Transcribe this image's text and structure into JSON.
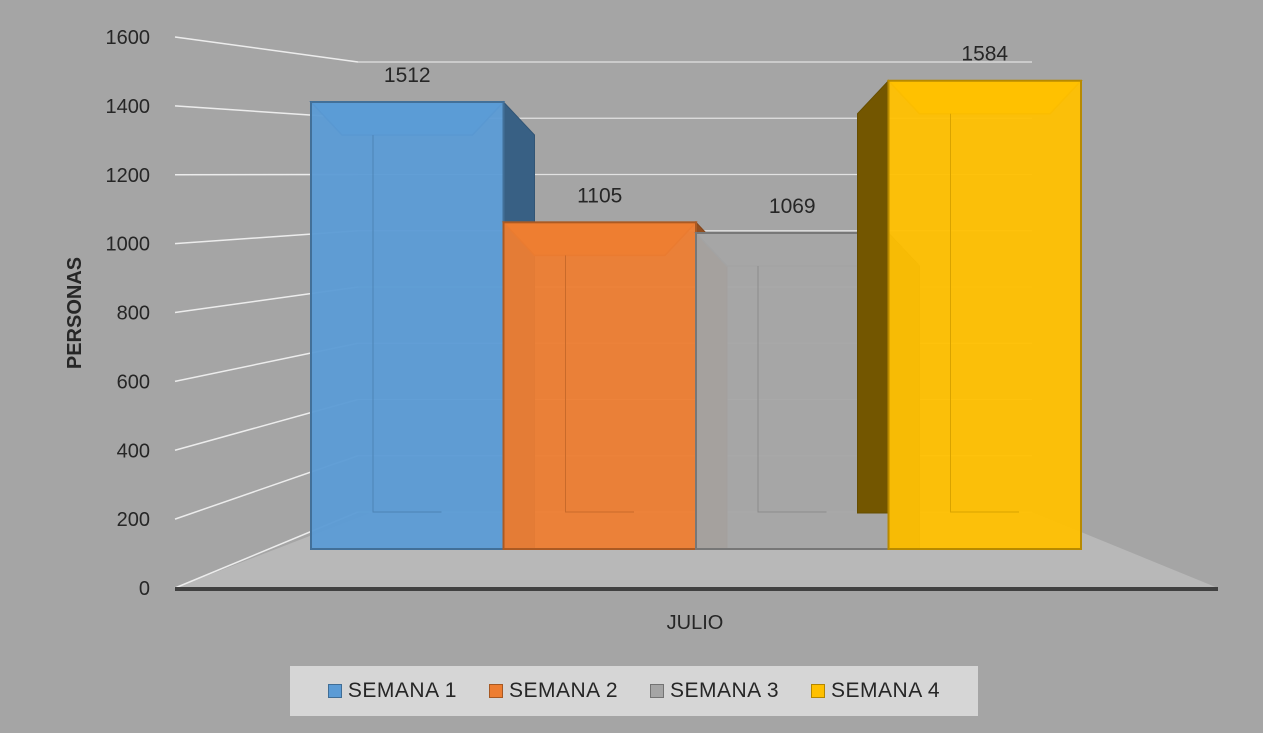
{
  "chart_data": {
    "type": "bar",
    "subtype": "3d-clustered-column",
    "title": "",
    "xlabel": "",
    "ylabel": "PERSONAS",
    "categories": [
      "JULIO"
    ],
    "ylim": [
      0,
      1600
    ],
    "yticks": [
      0,
      200,
      400,
      600,
      800,
      1000,
      1200,
      1400,
      1600
    ],
    "grid": true,
    "legend_position": "bottom",
    "series": [
      {
        "name": "SEMANA 1",
        "values": [
          1512
        ],
        "color": "#5b9bd5"
      },
      {
        "name": "SEMANA 2",
        "values": [
          1105
        ],
        "color": "#ed7d31"
      },
      {
        "name": "SEMANA 3",
        "values": [
          1069
        ],
        "color": "#a5a5a5"
      },
      {
        "name": "SEMANA 4",
        "values": [
          1584
        ],
        "color": "#ffc000"
      }
    ]
  },
  "colors": {
    "background": "#a5a5a5",
    "floor": "#b8b8b8",
    "gridline": "#ececec",
    "axis_line": "#404040"
  }
}
